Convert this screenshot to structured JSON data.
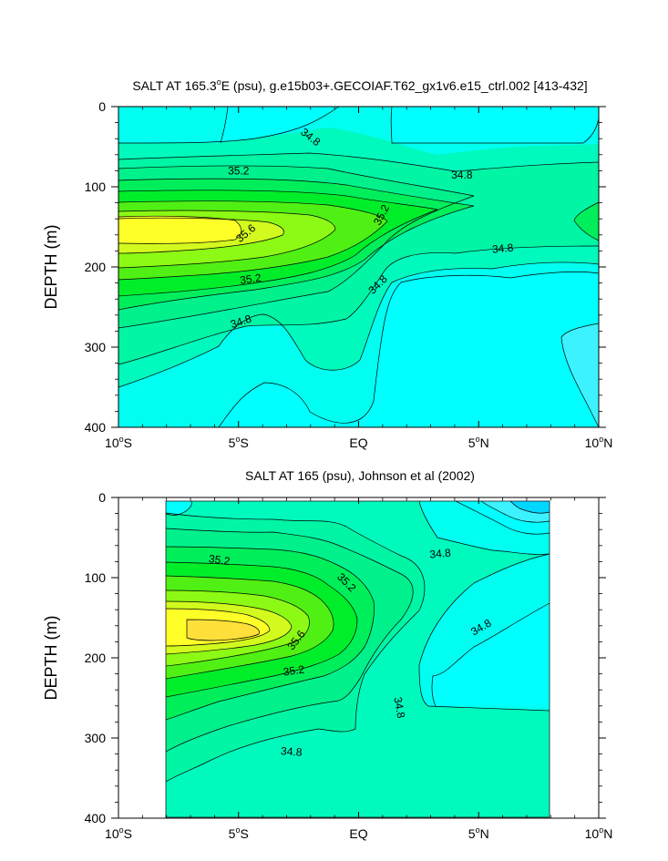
{
  "colors": {
    "below_34_6": "#00ffff",
    "lt_34_4": "#00d7ff",
    "c_34_4_34_6": "#3cf2ff",
    "c_34_6_34_8": "#00fff0",
    "c_34_8_35_0": "#00fabe",
    "c_35_0_35_2": "#00f08c",
    "c_35_2_35_4": "#00ee2a",
    "c_35_4_35_6": "#8cfa14",
    "c_35_6_35_8": "#ffff28",
    "c_gt_35_8": "#ffe03a",
    "contour_line": "#000000"
  },
  "chart_data": [
    {
      "type": "heatmap",
      "title_parts": [
        "SALT AT 165.3",
        "o",
        "E (psu), g.e15b03+.GECOIAF.T62_gx1v6.e15_ctrl.002 [413-432]"
      ],
      "xlabel": "",
      "ylabel": "DEPTH (m)",
      "xlim": [
        -10,
        10
      ],
      "ylim": [
        400,
        0
      ],
      "x_ticks": [
        {
          "value": -10,
          "parts": [
            "10",
            "o",
            "S"
          ]
        },
        {
          "value": -5,
          "parts": [
            "5",
            "o",
            "S"
          ]
        },
        {
          "value": 0,
          "parts": [
            "EQ",
            "",
            ""
          ]
        },
        {
          "value": 5,
          "parts": [
            "5",
            "o",
            "N"
          ]
        },
        {
          "value": 10,
          "parts": [
            "10",
            "o",
            "N"
          ]
        }
      ],
      "y_ticks": [
        "0",
        "100",
        "200",
        "300",
        "400"
      ],
      "contour_interval": 0.1,
      "contour_labels": [
        {
          "text": "34.8",
          "x": -2.0,
          "y": 38,
          "rotate": 38
        },
        {
          "text": "34.8",
          "x": 4.3,
          "y": 85,
          "rotate": 0
        },
        {
          "text": "35.2",
          "x": -5.0,
          "y": 80,
          "rotate": 0
        },
        {
          "text": "35.2",
          "x": 0.95,
          "y": 135,
          "rotate": -62
        },
        {
          "text": "35.6",
          "x": -4.7,
          "y": 158,
          "rotate": -40
        },
        {
          "text": "34.8",
          "x": 6.0,
          "y": 177,
          "rotate": -5
        },
        {
          "text": "35.2",
          "x": -4.5,
          "y": 215,
          "rotate": -8
        },
        {
          "text": "34.8",
          "x": 0.8,
          "y": 222,
          "rotate": -45
        },
        {
          "text": "34.8",
          "x": -4.9,
          "y": 268,
          "rotate": -18
        }
      ]
    },
    {
      "type": "heatmap",
      "title_parts": [
        "SALT AT 165 (psu), Johnson et al (2002)",
        "",
        ""
      ],
      "xlabel": "",
      "ylabel": "DEPTH (m)",
      "xlim": [
        -10,
        10
      ],
      "ylim": [
        400,
        0
      ],
      "data_x_range": [
        -8,
        8
      ],
      "x_ticks": [
        {
          "value": -10,
          "parts": [
            "10",
            "o",
            "S"
          ]
        },
        {
          "value": -5,
          "parts": [
            "5",
            "o",
            "S"
          ]
        },
        {
          "value": 0,
          "parts": [
            "EQ",
            "",
            ""
          ]
        },
        {
          "value": 5,
          "parts": [
            "5",
            "o",
            "N"
          ]
        },
        {
          "value": 10,
          "parts": [
            "10",
            "o",
            "N"
          ]
        }
      ],
      "y_ticks": [
        "0",
        "100",
        "200",
        "300",
        "400"
      ],
      "contour_interval": 0.1,
      "contour_labels": [
        {
          "text": "35.2",
          "x": -5.8,
          "y": 78,
          "rotate": 8
        },
        {
          "text": "35.2",
          "x": -0.5,
          "y": 106,
          "rotate": 45
        },
        {
          "text": "34.8",
          "x": 3.4,
          "y": 70,
          "rotate": -5
        },
        {
          "text": "34.8",
          "x": 5.1,
          "y": 162,
          "rotate": -30
        },
        {
          "text": "35.6",
          "x": -2.6,
          "y": 178,
          "rotate": -52
        },
        {
          "text": "35.2",
          "x": -2.7,
          "y": 216,
          "rotate": -8
        },
        {
          "text": "34.8",
          "x": 1.7,
          "y": 262,
          "rotate": 80
        },
        {
          "text": "34.8",
          "x": -2.8,
          "y": 317,
          "rotate": 4
        }
      ]
    }
  ]
}
